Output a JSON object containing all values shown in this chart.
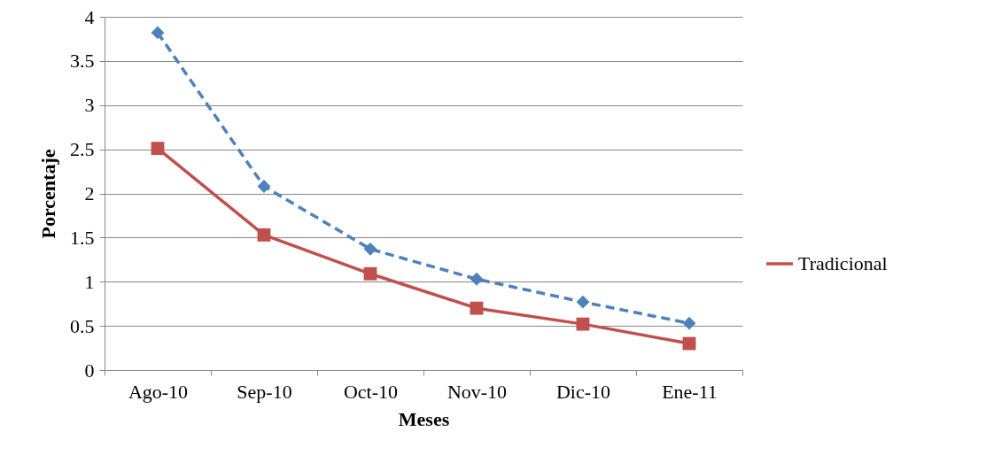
{
  "chart_data": {
    "type": "line",
    "xlabel": "Meses",
    "ylabel": "Porcentaje",
    "categories": [
      "Ago-10",
      "Sep-10",
      "Oct-10",
      "Nov-10",
      "Dic-10",
      "Ene-11"
    ],
    "series": [
      {
        "color": "#4f81bd",
        "marker": "diamond",
        "line_style": "dashed",
        "values": [
          3.82,
          2.08,
          1.37,
          1.03,
          0.77,
          0.53
        ]
      },
      {
        "name": "Tradicional",
        "color": "#c0504d",
        "marker": "square",
        "line_style": "solid",
        "values": [
          2.51,
          1.53,
          1.09,
          0.7,
          0.52,
          0.3
        ]
      }
    ],
    "ylim": [
      0,
      4
    ],
    "yticks": [
      0,
      0.5,
      1,
      1.5,
      2,
      2.5,
      3,
      3.5,
      4
    ],
    "grid": "y",
    "legend": "right"
  }
}
